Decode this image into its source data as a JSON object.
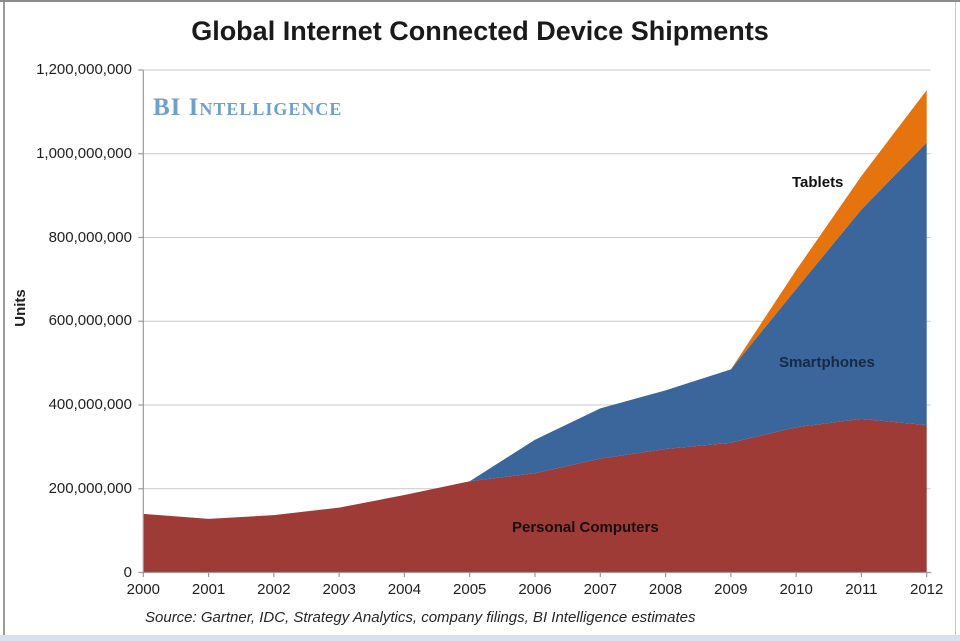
{
  "title": "Global Internet Connected Device Shipments",
  "logo": "BI Intelligence",
  "source": "Source: Gartner, IDC, Strategy Analytics, company filings, BI Intelligence estimates",
  "y_axis": {
    "title": "Units",
    "tick_labels": [
      "1,200,000,000",
      "1,000,000,000",
      "800,000,000",
      "600,000,000",
      "400,000,000",
      "200,000,000",
      "0"
    ]
  },
  "x_axis": {
    "tick_labels": [
      "2000",
      "2001",
      "2002",
      "2003",
      "2004",
      "2005",
      "2006",
      "2007",
      "2008",
      "2009",
      "2010",
      "2011",
      "2012"
    ]
  },
  "series_labels": {
    "tablets": "Tablets",
    "smartphones": "Smartphones",
    "personal_computers": "Personal Computers"
  },
  "colors": {
    "pc_area": "#9E3B36",
    "smartphone_area": "#3A669B",
    "tablet_area": "#E6740E",
    "logo_blue": "#6FA0CC",
    "gridline": "#C9C9C9",
    "axis": "#9B9B9B"
  },
  "chart_data": {
    "type": "area",
    "stacked": true,
    "title": "Global Internet Connected Device Shipments",
    "xlabel": "",
    "ylabel": "Units",
    "x": [
      2000,
      2001,
      2002,
      2003,
      2004,
      2005,
      2006,
      2007,
      2008,
      2009,
      2010,
      2011,
      2012
    ],
    "series": [
      {
        "name": "Personal Computers",
        "color": "#9E3B36",
        "values": [
          140000000,
          128000000,
          137000000,
          155000000,
          185000000,
          218000000,
          237000000,
          272000000,
          295000000,
          310000000,
          347000000,
          367000000,
          352000000
        ]
      },
      {
        "name": "Smartphones",
        "color": "#3A669B",
        "values": [
          0,
          0,
          0,
          0,
          0,
          0,
          80000000,
          120000000,
          140000000,
          175000000,
          330000000,
          500000000,
          675000000
        ]
      },
      {
        "name": "Tablets",
        "color": "#E6740E",
        "values": [
          0,
          0,
          0,
          0,
          0,
          0,
          0,
          0,
          0,
          0,
          45000000,
          80000000,
          125000000
        ]
      }
    ],
    "ylim": [
      0,
      1200000000
    ],
    "ytick_step": 200000000,
    "grid": true,
    "legend_position": "labels-on-areas"
  }
}
